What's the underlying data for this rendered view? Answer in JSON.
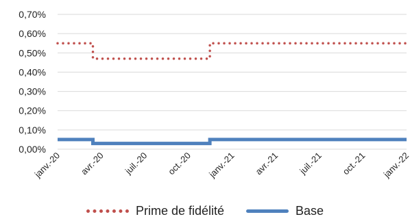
{
  "chart_data": {
    "type": "line",
    "x_labels": [
      "janv.-20",
      "avr.-20",
      "juil.-20",
      "oct.-20",
      "janv.-21",
      "avr.-21",
      "juil.-21",
      "oct.-21",
      "janv.-22"
    ],
    "y_ticks": [
      "0,00%",
      "0,10%",
      "0,20%",
      "0,30%",
      "0,40%",
      "0,50%",
      "0,60%",
      "0,70%"
    ],
    "ylim": [
      0,
      0.7
    ],
    "grid": true,
    "legend_position": "bottom",
    "series": [
      {
        "name": "Prime de fidélité",
        "style": "dotted",
        "color": "#c0504d",
        "points": [
          {
            "x": "2020-01-01",
            "y": 0.55
          },
          {
            "x": "2020-03-15",
            "y": 0.55
          },
          {
            "x": "2020-03-15",
            "y": 0.47
          },
          {
            "x": "2020-11-15",
            "y": 0.47
          },
          {
            "x": "2020-11-15",
            "y": 0.55
          },
          {
            "x": "2022-01-01",
            "y": 0.55
          }
        ]
      },
      {
        "name": "Base",
        "style": "solid",
        "color": "#4f81bd",
        "points": [
          {
            "x": "2020-01-01",
            "y": 0.05
          },
          {
            "x": "2020-03-15",
            "y": 0.05
          },
          {
            "x": "2020-03-15",
            "y": 0.03
          },
          {
            "x": "2020-11-15",
            "y": 0.03
          },
          {
            "x": "2020-11-15",
            "y": 0.05
          },
          {
            "x": "2022-01-01",
            "y": 0.05
          }
        ]
      }
    ]
  }
}
